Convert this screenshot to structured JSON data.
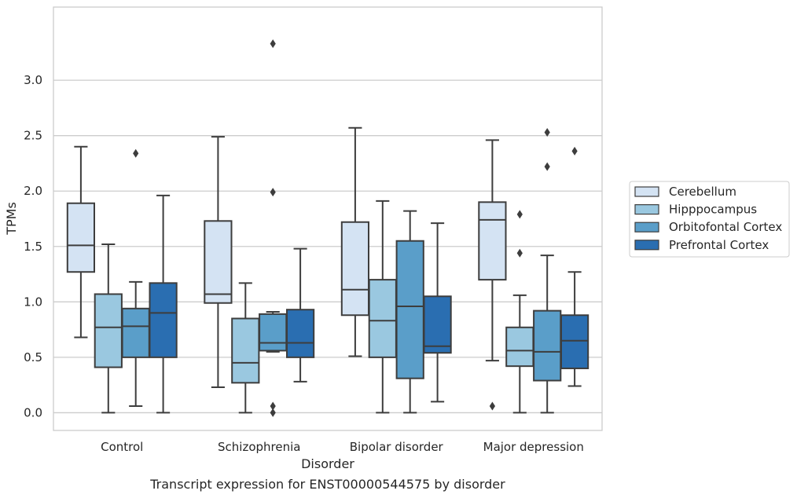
{
  "chart_data": {
    "type": "box",
    "title": "",
    "caption": "Transcript expression for ENST00000544575 by disorder",
    "xlabel": "Disorder",
    "ylabel": "TPMs",
    "ylim": [
      -0.16,
      3.66
    ],
    "yticks": [
      0.0,
      0.5,
      1.0,
      1.5,
      2.0,
      2.5,
      3.0
    ],
    "ytick_labels": [
      "0.0",
      "0.5",
      "1.0",
      "1.5",
      "2.0",
      "2.5",
      "3.0"
    ],
    "grid": "horizontal",
    "legend_position": "right",
    "categories": [
      "Control",
      "Schizophrenia",
      "Bipolar disorder",
      "Major depression"
    ],
    "series": [
      {
        "name": "Cerebellum",
        "color": "#d4e3f3",
        "boxes": [
          {
            "whislo": 0.68,
            "q1": 1.27,
            "med": 1.51,
            "q3": 1.89,
            "whishi": 2.4,
            "fliers": []
          },
          {
            "whislo": 0.23,
            "q1": 0.99,
            "med": 1.07,
            "q3": 1.73,
            "whishi": 2.49,
            "fliers": []
          },
          {
            "whislo": 0.51,
            "q1": 0.88,
            "med": 1.11,
            "q3": 1.72,
            "whishi": 2.57,
            "fliers": []
          },
          {
            "whislo": 0.47,
            "q1": 1.2,
            "med": 1.74,
            "q3": 1.9,
            "whishi": 2.46,
            "fliers": [
              0.06
            ]
          }
        ]
      },
      {
        "name": "Hipppocampus",
        "color": "#9ac8e0",
        "boxes": [
          {
            "whislo": 0.0,
            "q1": 0.41,
            "med": 0.77,
            "q3": 1.07,
            "whishi": 1.52,
            "fliers": []
          },
          {
            "whislo": 0.0,
            "q1": 0.27,
            "med": 0.45,
            "q3": 0.85,
            "whishi": 1.17,
            "fliers": []
          },
          {
            "whislo": 0.0,
            "q1": 0.5,
            "med": 0.83,
            "q3": 1.2,
            "whishi": 1.91,
            "fliers": []
          },
          {
            "whislo": 0.0,
            "q1": 0.42,
            "med": 0.56,
            "q3": 0.77,
            "whishi": 1.06,
            "fliers": [
              1.44,
              1.79
            ]
          }
        ]
      },
      {
        "name": "Orbitofontal Cortex",
        "color": "#5a9ec9",
        "boxes": [
          {
            "whislo": 0.06,
            "q1": 0.5,
            "med": 0.78,
            "q3": 0.94,
            "whishi": 1.18,
            "fliers": [
              2.34
            ]
          },
          {
            "whislo": 0.55,
            "q1": 0.56,
            "med": 0.63,
            "q3": 0.89,
            "whishi": 0.91,
            "fliers": [
              0.0,
              0.06,
              1.99,
              3.33
            ]
          },
          {
            "whislo": 0.0,
            "q1": 0.31,
            "med": 0.96,
            "q3": 1.55,
            "whishi": 1.82,
            "fliers": []
          },
          {
            "whislo": 0.0,
            "q1": 0.29,
            "med": 0.55,
            "q3": 0.92,
            "whishi": 1.42,
            "fliers": [
              2.22,
              2.53
            ]
          }
        ]
      },
      {
        "name": "Prefrontal Cortex",
        "color": "#2a6eb1",
        "boxes": [
          {
            "whislo": 0.0,
            "q1": 0.5,
            "med": 0.9,
            "q3": 1.17,
            "whishi": 1.96,
            "fliers": []
          },
          {
            "whislo": 0.28,
            "q1": 0.5,
            "med": 0.63,
            "q3": 0.93,
            "whishi": 1.48,
            "fliers": []
          },
          {
            "whislo": 0.1,
            "q1": 0.54,
            "med": 0.6,
            "q3": 1.05,
            "whishi": 1.71,
            "fliers": []
          },
          {
            "whislo": 0.24,
            "q1": 0.4,
            "med": 0.65,
            "q3": 0.88,
            "whishi": 1.27,
            "fliers": [
              2.36
            ]
          }
        ]
      }
    ]
  }
}
